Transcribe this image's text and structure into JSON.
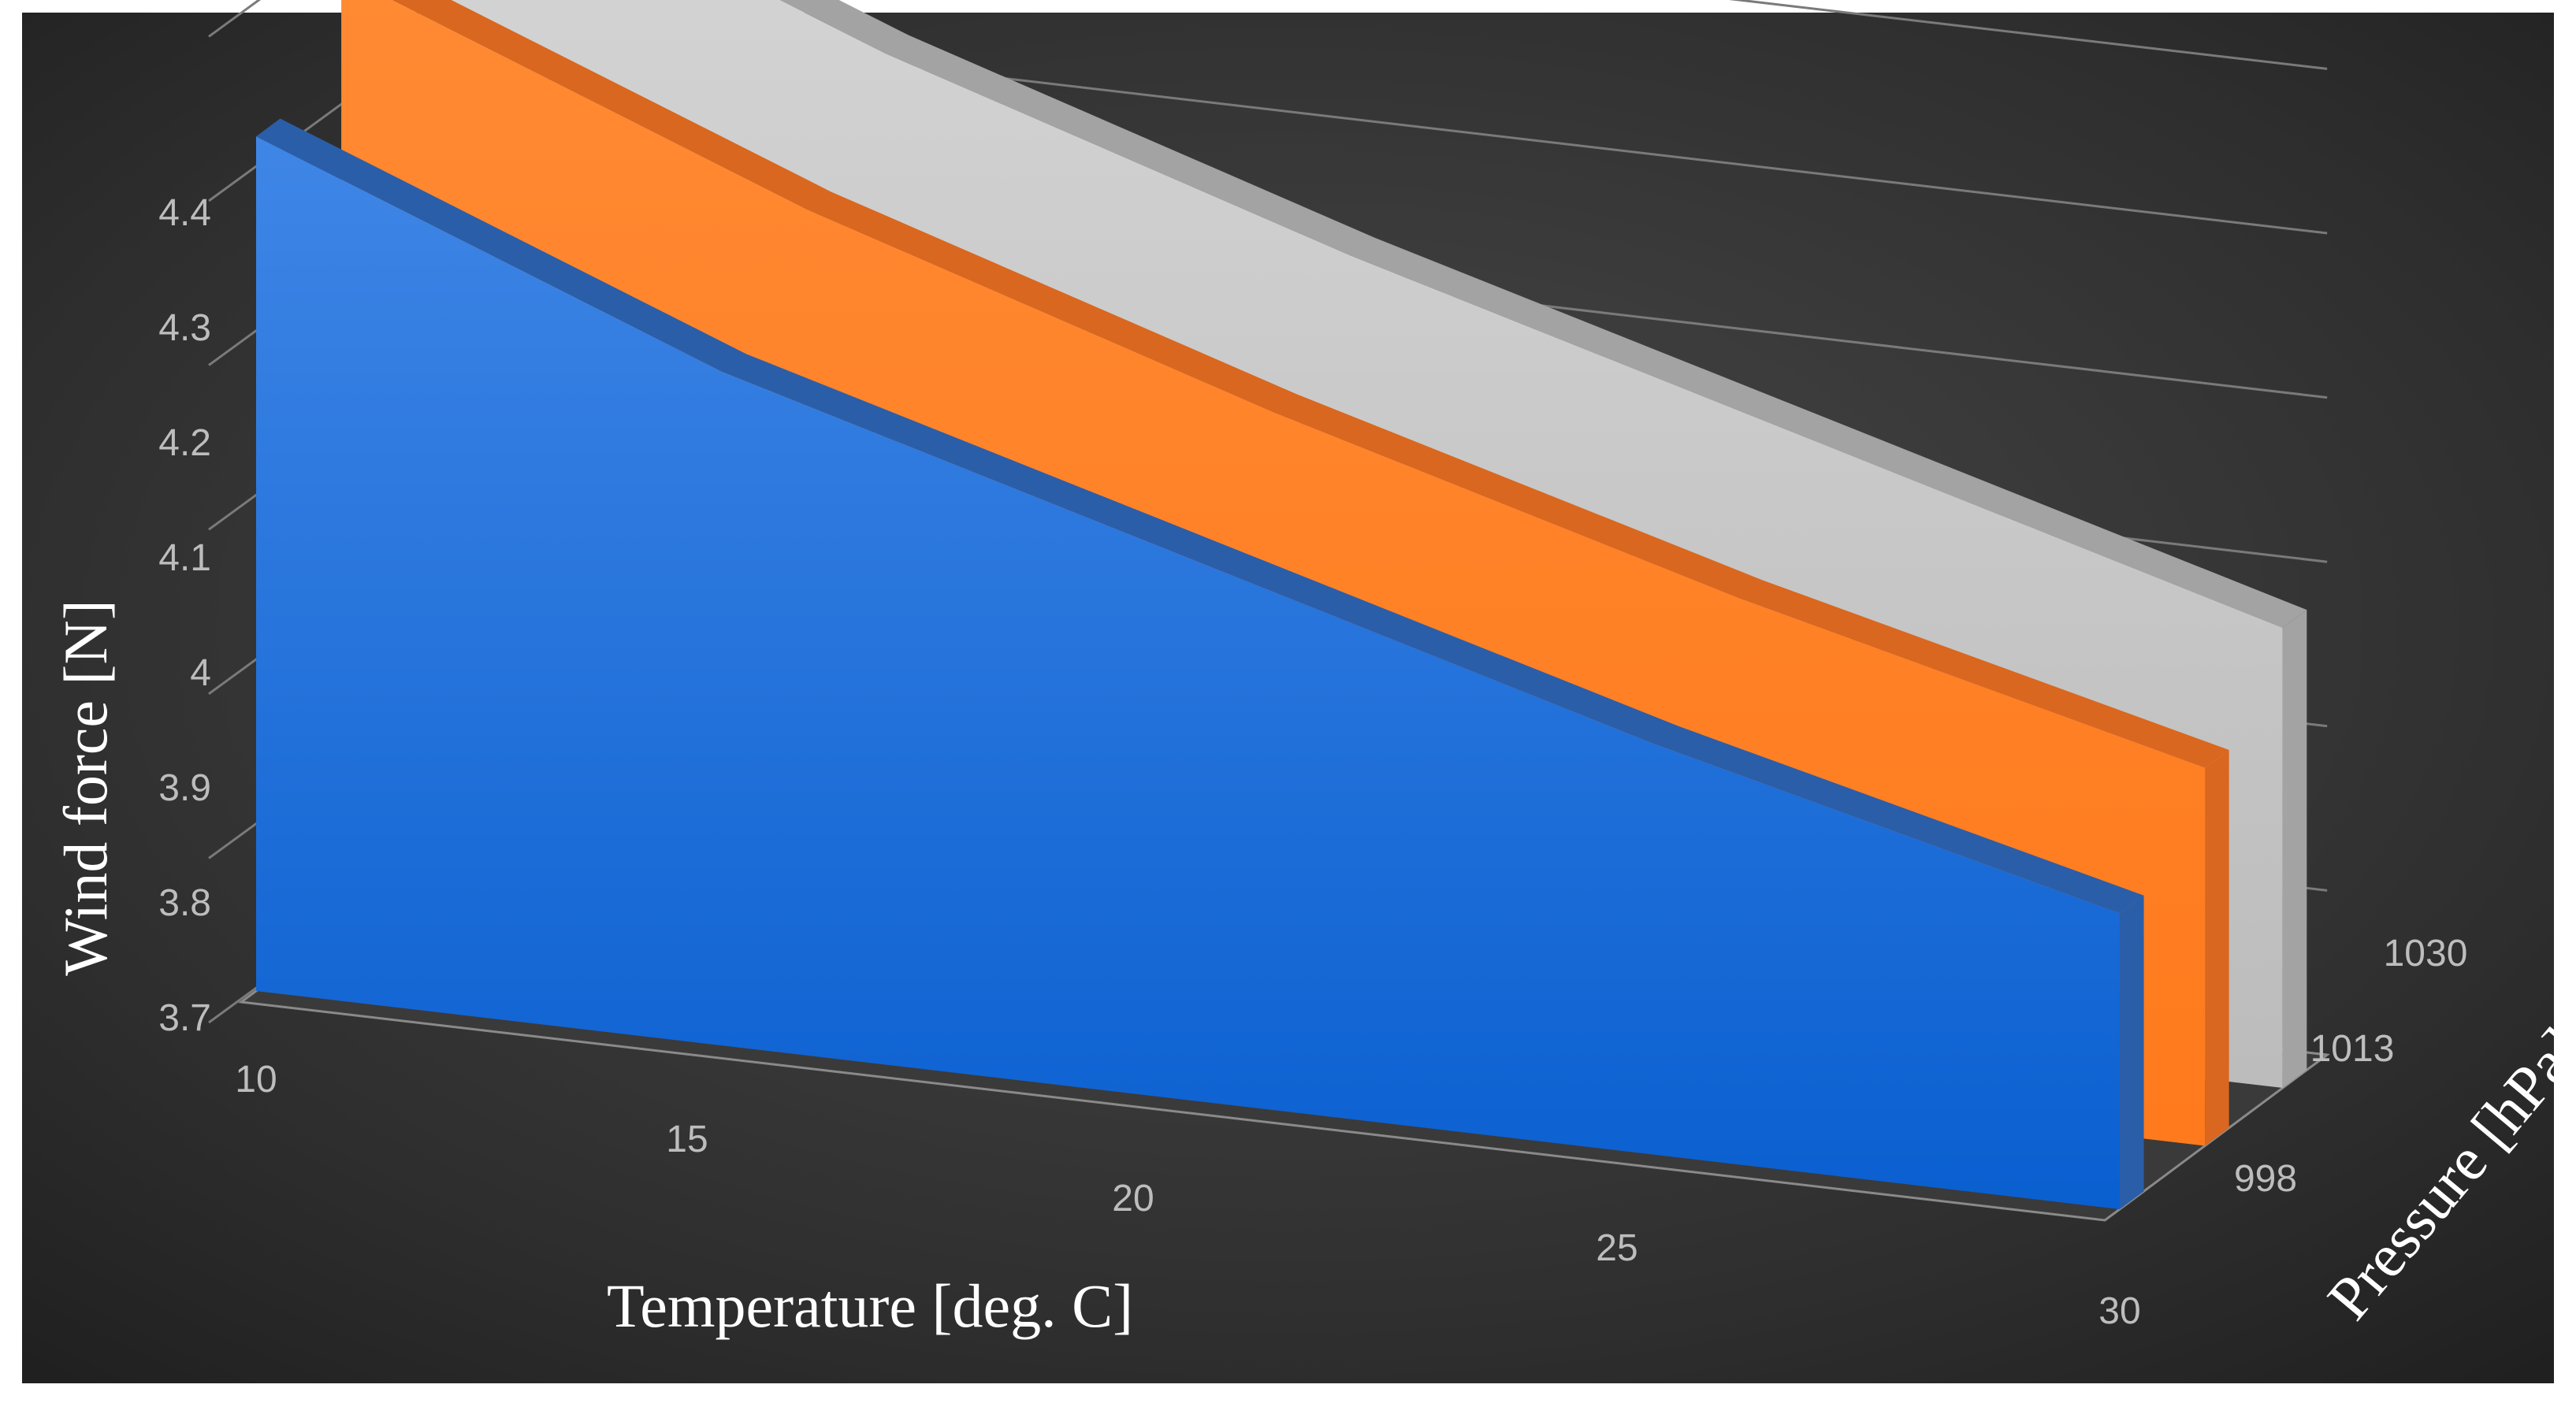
{
  "chart_data": {
    "type": "area",
    "subtype": "3d-area",
    "title": "",
    "xlabel": "Temperature [deg. C]",
    "ylabel": "Wind force [N]",
    "zlabel": "Pressure [hPa]",
    "x": [
      10,
      15,
      20,
      25,
      30
    ],
    "x_ticks": [
      "10",
      "15",
      "20",
      "25",
      "30"
    ],
    "y_ticks": [
      "3.7",
      "3.8",
      "3.9",
      "4",
      "4.1",
      "4.2",
      "4.3",
      "4.4"
    ],
    "ylim": [
      3.7,
      4.4
    ],
    "z_categories": [
      "998",
      "1013",
      "1030"
    ],
    "series": [
      {
        "name": "998",
        "color": "#1f6fd6",
        "top_color": "#2a5ea8",
        "values": [
          4.22,
          4.11,
          4.03,
          3.95,
          3.88
        ]
      },
      {
        "name": "1013",
        "color": "#ff7f27",
        "top_color": "#d9671f",
        "values": [
          4.28,
          4.17,
          4.08,
          4.0,
          3.93
        ]
      },
      {
        "name": "1030",
        "color": "#c8c8c8",
        "top_color": "#a3a3a3",
        "values": [
          4.34,
          4.23,
          4.14,
          4.06,
          3.98
        ]
      }
    ],
    "background": "#2b2b2b",
    "grid": true,
    "legend": "none"
  }
}
